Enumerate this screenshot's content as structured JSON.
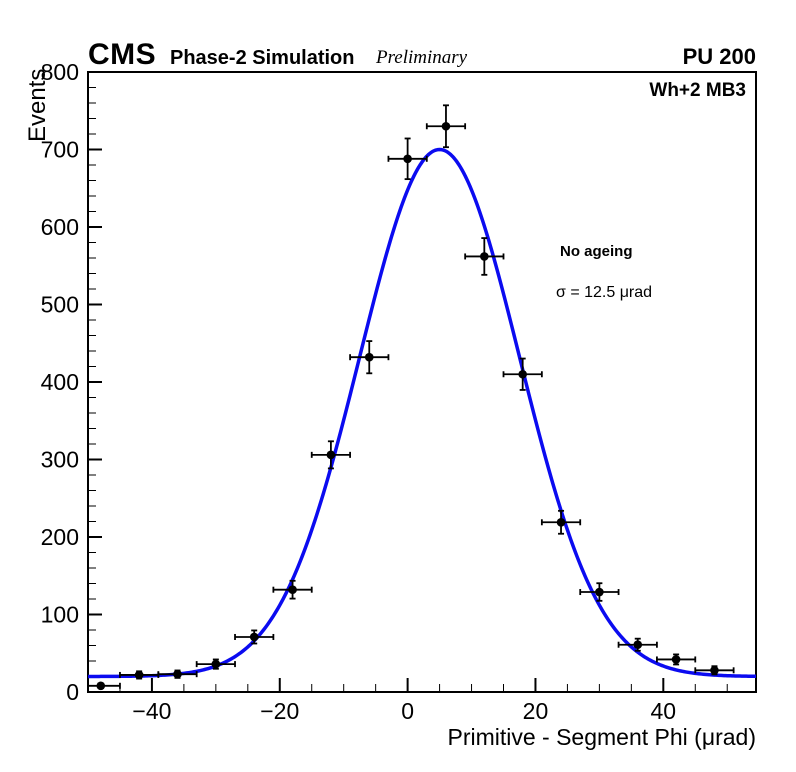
{
  "header": {
    "experiment": "CMS",
    "label": "Phase-2 Simulation",
    "sublabel": "Preliminary",
    "right_label": "PU 200"
  },
  "plot": {
    "corner_label": "Wh+2 MB3",
    "annotations": {
      "line1": "No ageing",
      "line2": "σ = 12.5 μrad"
    }
  },
  "chart_data": {
    "type": "scatter",
    "title": "",
    "xlabel": "Primitive - Segment Phi (μrad)",
    "ylabel": "Events",
    "xlim": [
      -50,
      54.5
    ],
    "ylim": [
      0,
      800
    ],
    "x_ticks": [
      -40,
      -20,
      0,
      20,
      40
    ],
    "y_ticks": [
      0,
      100,
      200,
      300,
      400,
      500,
      600,
      700,
      800
    ],
    "x_minor_step": 5,
    "y_minor_step": 20,
    "grid": false,
    "legend_position": "none",
    "series": [
      {
        "name": "data-points",
        "marker": "filled-circle",
        "color": "#000000",
        "x": [
          -48,
          -42,
          -36,
          -30,
          -24,
          -18,
          -12,
          -6,
          0,
          6,
          12,
          18,
          24,
          30,
          36,
          42,
          48
        ],
        "y": [
          8,
          22,
          23,
          36,
          71,
          132,
          306,
          432,
          688,
          730,
          562,
          410,
          219,
          129,
          61,
          42,
          28
        ],
        "xerr": 3,
        "yerr_mode": "sqrt"
      },
      {
        "name": "gaussian-fit",
        "type": "function",
        "color": "#0b0bf0",
        "amplitude": 680,
        "mean": 5,
        "sigma": 12.5,
        "offset": 20
      }
    ]
  }
}
